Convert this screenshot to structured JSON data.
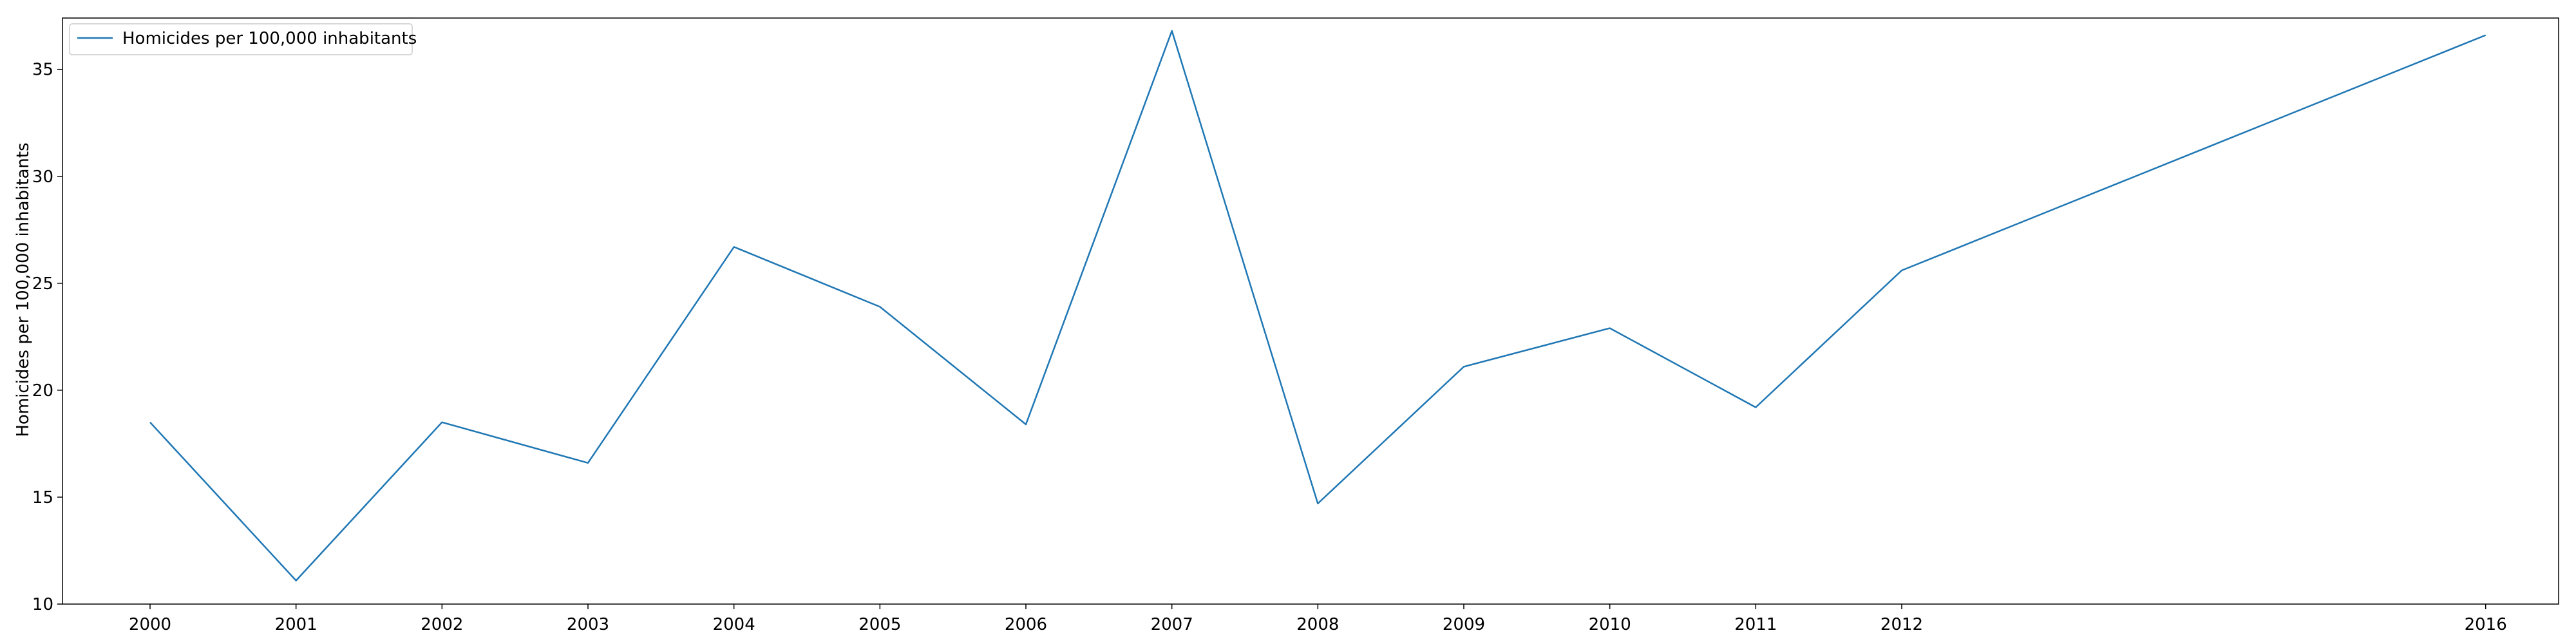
{
  "chart_data": {
    "type": "line",
    "title": "",
    "xlabel": "",
    "ylabel": "Homicides per 100,000 inhabitants",
    "x": [
      2000,
      2001,
      2002,
      2003,
      2004,
      2005,
      2006,
      2007,
      2008,
      2009,
      2010,
      2011,
      2012,
      2016
    ],
    "x_tick_labels": [
      "2000",
      "2001",
      "2002",
      "2003",
      "2004",
      "2005",
      "2006",
      "2007",
      "2008",
      "2009",
      "2010",
      "2011",
      "2012",
      "2016"
    ],
    "y_ticks": [
      10,
      15,
      20,
      25,
      30,
      35
    ],
    "xlim": [
      1999.4,
      2016.5
    ],
    "ylim": [
      10,
      37.4
    ],
    "grid": false,
    "legend_position": "top-left",
    "series": [
      {
        "name": "Homicides per 100,000 inhabitants",
        "color": "#1f77b4",
        "values": [
          18.5,
          11.1,
          18.5,
          16.6,
          26.7,
          23.9,
          18.4,
          36.8,
          14.7,
          21.1,
          22.9,
          19.2,
          25.6,
          36.6
        ]
      }
    ]
  }
}
